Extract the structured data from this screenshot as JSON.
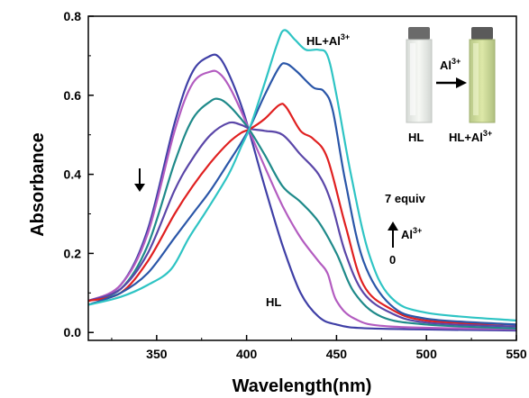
{
  "chart_data": {
    "type": "line",
    "title": "",
    "xlabel": "Wavelength(nm)",
    "ylabel": "Absorbance",
    "xlim": [
      312,
      550
    ],
    "ylim": [
      -0.02,
      0.8
    ],
    "xticks": [
      "350",
      "400",
      "450",
      "500",
      "550"
    ],
    "yticks": [
      "0.0",
      "0.2",
      "0.4",
      "0.6",
      "0.8"
    ],
    "grid": false,
    "legend": "none",
    "series": [
      {
        "color": "#3f3fa6",
        "points": [
          [
            312,
            0.08
          ],
          [
            330,
            0.12
          ],
          [
            345,
            0.26
          ],
          [
            360,
            0.53
          ],
          [
            370,
            0.66
          ],
          [
            380,
            0.7
          ],
          [
            385,
            0.695
          ],
          [
            390,
            0.655
          ],
          [
            397,
            0.575
          ],
          [
            402,
            0.5
          ],
          [
            410,
            0.37
          ],
          [
            420,
            0.22
          ],
          [
            430,
            0.1
          ],
          [
            440,
            0.04
          ],
          [
            450,
            0.02
          ],
          [
            470,
            0.01
          ],
          [
            550,
            0.005
          ]
        ]
      },
      {
        "color": "#b35cc0",
        "points": [
          [
            312,
            0.08
          ],
          [
            330,
            0.12
          ],
          [
            345,
            0.25
          ],
          [
            360,
            0.51
          ],
          [
            370,
            0.63
          ],
          [
            380,
            0.66
          ],
          [
            385,
            0.655
          ],
          [
            390,
            0.625
          ],
          [
            397,
            0.56
          ],
          [
            402,
            0.505
          ],
          [
            410,
            0.42
          ],
          [
            420,
            0.32
          ],
          [
            430,
            0.24
          ],
          [
            440,
            0.18
          ],
          [
            445,
            0.15
          ],
          [
            450,
            0.08
          ],
          [
            460,
            0.035
          ],
          [
            480,
            0.015
          ],
          [
            550,
            0.008
          ]
        ]
      },
      {
        "color": "#1f8a8a",
        "points": [
          [
            312,
            0.08
          ],
          [
            330,
            0.11
          ],
          [
            345,
            0.22
          ],
          [
            360,
            0.43
          ],
          [
            370,
            0.54
          ],
          [
            380,
            0.585
          ],
          [
            385,
            0.59
          ],
          [
            390,
            0.575
          ],
          [
            397,
            0.54
          ],
          [
            402,
            0.51
          ],
          [
            410,
            0.45
          ],
          [
            420,
            0.37
          ],
          [
            430,
            0.33
          ],
          [
            440,
            0.28
          ],
          [
            450,
            0.2
          ],
          [
            460,
            0.1
          ],
          [
            475,
            0.04
          ],
          [
            500,
            0.02
          ],
          [
            550,
            0.01
          ]
        ]
      },
      {
        "color": "#5a46a8",
        "points": [
          [
            312,
            0.08
          ],
          [
            330,
            0.11
          ],
          [
            345,
            0.2
          ],
          [
            360,
            0.36
          ],
          [
            370,
            0.44
          ],
          [
            380,
            0.5
          ],
          [
            390,
            0.53
          ],
          [
            397,
            0.525
          ],
          [
            402,
            0.515
          ],
          [
            410,
            0.51
          ],
          [
            420,
            0.5
          ],
          [
            430,
            0.45
          ],
          [
            440,
            0.4
          ],
          [
            447,
            0.33
          ],
          [
            455,
            0.2
          ],
          [
            465,
            0.1
          ],
          [
            480,
            0.05
          ],
          [
            500,
            0.025
          ],
          [
            550,
            0.015
          ]
        ]
      },
      {
        "color": "#e02020",
        "points": [
          [
            312,
            0.08
          ],
          [
            330,
            0.1
          ],
          [
            345,
            0.18
          ],
          [
            360,
            0.3
          ],
          [
            370,
            0.37
          ],
          [
            380,
            0.43
          ],
          [
            390,
            0.48
          ],
          [
            397,
            0.505
          ],
          [
            402,
            0.515
          ],
          [
            410,
            0.54
          ],
          [
            418,
            0.575
          ],
          [
            422,
            0.57
          ],
          [
            430,
            0.51
          ],
          [
            437,
            0.49
          ],
          [
            445,
            0.44
          ],
          [
            455,
            0.27
          ],
          [
            465,
            0.12
          ],
          [
            480,
            0.06
          ],
          [
            500,
            0.03
          ],
          [
            550,
            0.02
          ]
        ]
      },
      {
        "color": "#2a56a8",
        "points": [
          [
            312,
            0.07
          ],
          [
            330,
            0.1
          ],
          [
            345,
            0.15
          ],
          [
            360,
            0.24
          ],
          [
            370,
            0.3
          ],
          [
            380,
            0.36
          ],
          [
            390,
            0.43
          ],
          [
            397,
            0.48
          ],
          [
            402,
            0.52
          ],
          [
            410,
            0.6
          ],
          [
            418,
            0.67
          ],
          [
            422,
            0.68
          ],
          [
            428,
            0.66
          ],
          [
            437,
            0.62
          ],
          [
            443,
            0.61
          ],
          [
            448,
            0.56
          ],
          [
            455,
            0.38
          ],
          [
            465,
            0.18
          ],
          [
            480,
            0.07
          ],
          [
            500,
            0.035
          ],
          [
            550,
            0.02
          ]
        ]
      },
      {
        "color": "#2ec4c4",
        "points": [
          [
            312,
            0.07
          ],
          [
            330,
            0.09
          ],
          [
            345,
            0.12
          ],
          [
            358,
            0.16
          ],
          [
            368,
            0.24
          ],
          [
            378,
            0.31
          ],
          [
            390,
            0.4
          ],
          [
            397,
            0.47
          ],
          [
            402,
            0.52
          ],
          [
            410,
            0.63
          ],
          [
            417,
            0.73
          ],
          [
            421,
            0.765
          ],
          [
            427,
            0.74
          ],
          [
            433,
            0.715
          ],
          [
            440,
            0.715
          ],
          [
            445,
            0.7
          ],
          [
            450,
            0.6
          ],
          [
            458,
            0.4
          ],
          [
            468,
            0.2
          ],
          [
            480,
            0.09
          ],
          [
            500,
            0.05
          ],
          [
            550,
            0.03
          ]
        ]
      }
    ],
    "annotations": {
      "top_label": {
        "base": "HL+Al",
        "sup": "3+"
      },
      "hl_label": "HL",
      "equiv_label": "7 equiv",
      "ion_label": {
        "base": "Al",
        "sup": "3+"
      },
      "zero_label": "0"
    }
  },
  "inset": {
    "cuvette_left_label": "HL",
    "cuvette_right_label": {
      "base": "HL+Al",
      "sup": "3+"
    },
    "arrow_label": {
      "base": "Al",
      "sup": "3+"
    }
  }
}
